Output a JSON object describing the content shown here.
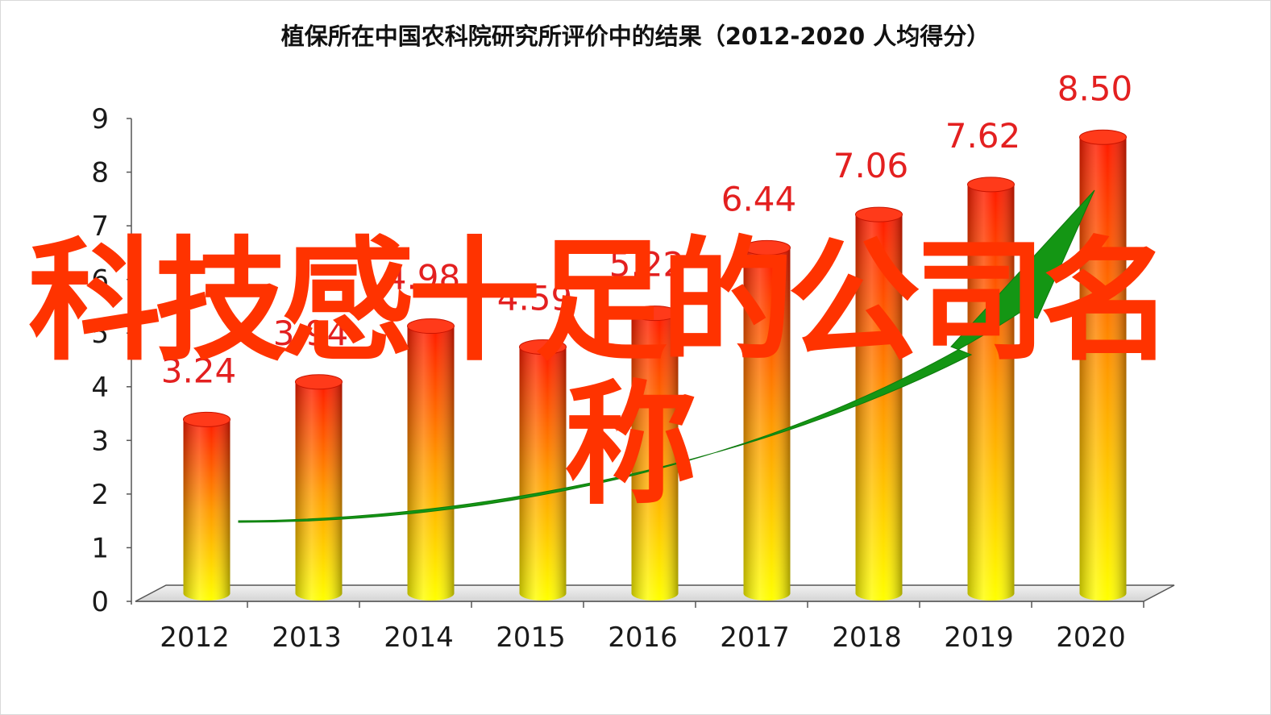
{
  "chart_data": {
    "type": "bar",
    "title": "植保所在中国农科院研究所评价中的结果（2012-2020  人均得分）",
    "categories": [
      "2012",
      "2013",
      "2014",
      "2015",
      "2016",
      "2017",
      "2018",
      "2019",
      "2020"
    ],
    "values": [
      3.24,
      3.94,
      4.98,
      4.59,
      5.22,
      6.44,
      7.06,
      7.62,
      8.5
    ],
    "data_labels": [
      "3.24",
      "3.94",
      "4.98",
      "4.59",
      "5.22",
      "6.44",
      "7.06",
      "7.62",
      "8.50"
    ],
    "yticks": [
      "0",
      "1",
      "2",
      "3",
      "4",
      "5",
      "6",
      "7",
      "8",
      "9"
    ],
    "ylim": [
      0,
      9
    ],
    "xlabel": "",
    "ylabel": "",
    "grid": false,
    "legend": "none",
    "style": "3d-cylinder",
    "colors": {
      "bar_top": "#ff1a00",
      "bar_mid": "#ff9a00",
      "bar_bottom": "#ffff00",
      "label": "#e32020",
      "trend_arrow": "#149614",
      "floor": "#e6e6e6"
    },
    "trend_arrow": "increasing"
  },
  "watermark": {
    "line1": "科技感十足的公司名",
    "line2": "称",
    "color": "#ff3300"
  }
}
